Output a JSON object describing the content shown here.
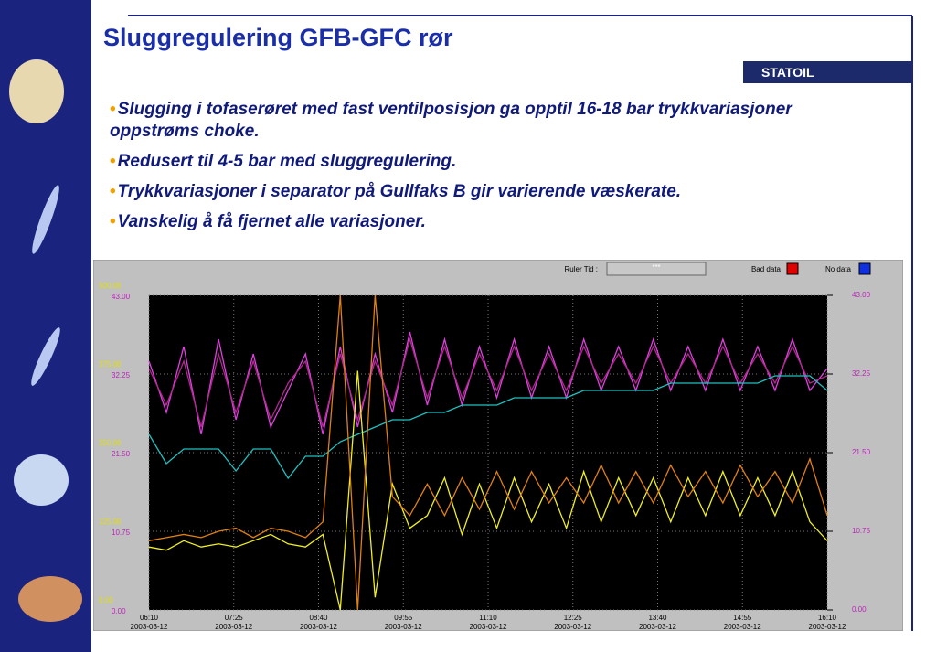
{
  "header": {
    "title": "Sluggregulering GFB-GFC rør",
    "logo": "STATOIL"
  },
  "bullets": [
    "Slugging i tofaserøret med fast ventilposisjon ga opptil 16-18 bar trykkvariasjoner oppstrøms choke.",
    "Redusert til 4-5 bar med sluggregulering.",
    "Trykkvariasjoner i separator på Gullfaks B gir varierende væskerate.",
    "Vanskelig å få fjernet alle variasjoner."
  ],
  "trend": {
    "ruler_label": "Ruler Tid :",
    "ruler_value": "***",
    "bad_data": "Bad data",
    "no_data": "No data",
    "x_labels": [
      {
        "time": "06:10",
        "date": "2003-03-12"
      },
      {
        "time": "07:25",
        "date": "2003-03-12"
      },
      {
        "time": "08:40",
        "date": "2003-03-12"
      },
      {
        "time": "09:55",
        "date": "2003-03-12"
      },
      {
        "time": "11:10",
        "date": "2003-03-12"
      },
      {
        "time": "12:25",
        "date": "2003-03-12"
      },
      {
        "time": "13:40",
        "date": "2003-03-12"
      },
      {
        "time": "14:55",
        "date": "2003-03-12"
      },
      {
        "time": "16:10",
        "date": "2003-03-12"
      }
    ],
    "ylim": [
      0,
      500
    ],
    "yticks": [
      {
        "value": 500,
        "label": "500.00"
      },
      {
        "value": 375,
        "label": "375.00"
      },
      {
        "value": 250,
        "label": "250.00"
      },
      {
        "value": 125,
        "label": "125.00"
      },
      {
        "value": 0,
        "label": "0.00"
      }
    ],
    "y2lim": [
      0,
      43
    ],
    "y2ticks": [
      {
        "value": 43,
        "label": "43.00"
      },
      {
        "value": 32.25,
        "label": "32.25"
      },
      {
        "value": 21.5,
        "label": "21.50"
      },
      {
        "value": 10.75,
        "label": "10.75"
      },
      {
        "value": 0,
        "label": "0.00"
      }
    ],
    "grid": true,
    "series": [
      {
        "color": "#e040e0",
        "axis": "y2",
        "values": [
          34,
          27,
          36,
          24,
          37,
          26,
          35,
          25,
          30,
          35,
          24,
          36,
          25,
          35,
          27,
          38,
          28,
          37,
          28,
          36,
          29,
          37,
          29,
          36,
          29,
          37,
          30,
          36,
          30,
          37,
          30,
          36,
          30,
          37,
          30,
          36,
          30,
          37,
          30,
          33
        ]
      },
      {
        "color": "#b02890",
        "axis": "y2",
        "values": [
          33,
          28,
          34,
          25,
          35,
          27,
          34,
          26,
          31,
          34,
          25,
          35,
          26,
          34,
          28,
          37,
          29,
          36,
          29,
          35,
          30,
          36,
          30,
          35,
          30,
          36,
          31,
          35,
          31,
          36,
          31,
          35,
          31,
          36,
          31,
          35,
          31,
          36,
          31,
          32
        ]
      },
      {
        "color": "#20c0c0",
        "axis": "y2",
        "values": [
          24,
          20,
          22,
          22,
          22,
          19,
          22,
          22,
          18,
          21,
          21,
          23,
          24,
          25,
          26,
          26,
          27,
          27,
          28,
          28,
          28,
          29,
          29,
          29,
          29,
          30,
          30,
          30,
          30,
          30,
          31,
          31,
          31,
          31,
          31,
          31,
          32,
          32,
          32,
          30
        ]
      },
      {
        "color": "#f0f020",
        "axis": "y",
        "values": [
          100,
          95,
          110,
          100,
          105,
          100,
          110,
          120,
          105,
          100,
          120,
          0,
          380,
          20,
          200,
          130,
          150,
          210,
          120,
          200,
          130,
          210,
          140,
          200,
          130,
          220,
          140,
          210,
          150,
          210,
          140,
          210,
          150,
          220,
          150,
          210,
          150,
          220,
          140,
          110
        ]
      },
      {
        "color": "#e08010",
        "axis": "y",
        "values": [
          110,
          115,
          120,
          115,
          125,
          130,
          115,
          130,
          125,
          115,
          140,
          500,
          0,
          500,
          180,
          150,
          200,
          150,
          210,
          160,
          220,
          160,
          220,
          170,
          210,
          170,
          230,
          170,
          220,
          170,
          230,
          180,
          220,
          170,
          230,
          180,
          220,
          170,
          240,
          150
        ]
      }
    ]
  }
}
